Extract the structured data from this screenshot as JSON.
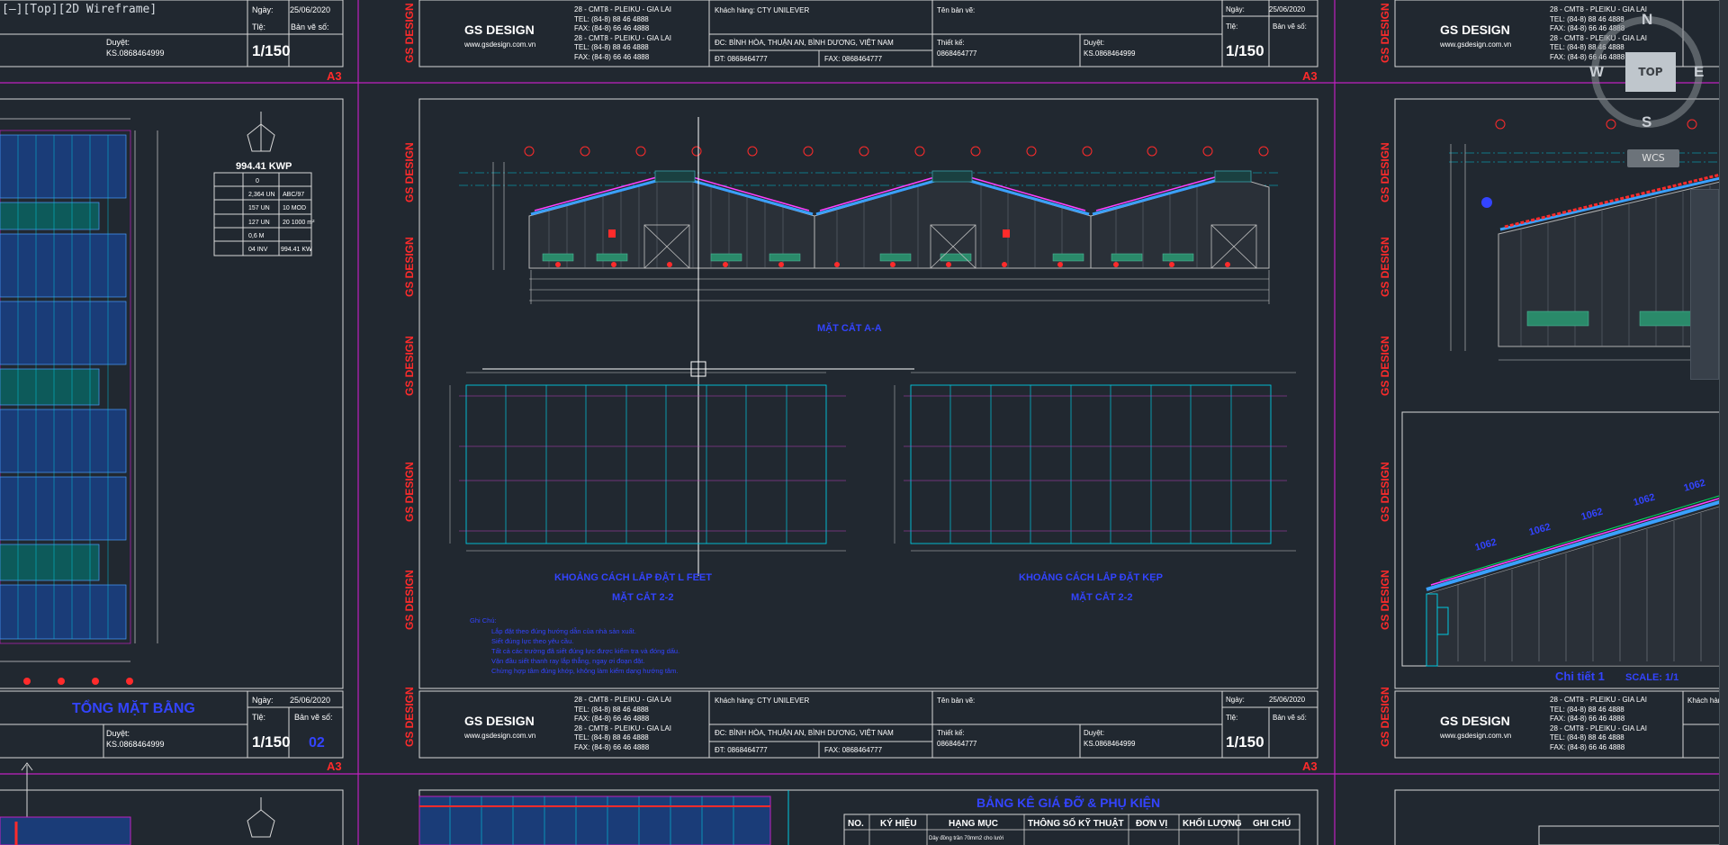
{
  "viewport": {
    "label": "[–][Top][2D Wireframe]"
  },
  "title_block": {
    "company": "GS DESIGN",
    "website": "www.gsdesign.com.vn",
    "address1": "28 - CMT8 - PLEIKU - GIA LAI",
    "tel1": "TEL:   (84-8) 88 46 4888",
    "fax1": "FAX:  (84-8) 66 46 4888",
    "address2": "28 - CMT8 - PLEIKU - GIA LAI",
    "tel2": "TEL:   (84-8) 88 46 4888",
    "fax2": "FAX:  (84-8) 66 46 4888",
    "client": "Khách hàng: CTY UNILEVER",
    "client_address": "ĐC: BÌNH HÒA, THUẬN AN, BÌNH DƯƠNG, VIỆT NAM",
    "phone": "ĐT: 0868464777",
    "fax": "FAX: 0868464777",
    "drawing_name": "Tên bản vẽ:",
    "designer_label": "Thiết kế:",
    "designer_value": "0868464777",
    "approver_label": "Duyệt:",
    "approver_value": "KS.0868464999",
    "date_label": "Ngày:",
    "date_value": "25/06/2020",
    "scale_label": "Tlệ:",
    "scale_value": "1/150",
    "sheet_label": "Bản vẽ số:",
    "sheet_number": "02",
    "paper": "A3"
  },
  "left_sheet": {
    "capacity": "994.41 KWP",
    "plan_title": "TỔNG MẶT BẰNG",
    "legend_values": [
      "0",
      "2,364 UN",
      "157 UN",
      "127 UN",
      "0,6 M",
      "04 INV"
    ],
    "legend_right": [
      "ABC/97",
      "10 MOD",
      "20 1000 m²",
      "994.41 KW"
    ]
  },
  "center_sheet": {
    "section_title": "MẶT CẮT A-A",
    "layout_title_left": "KHOẢNG CÁCH LẮP ĐẶT L FEET",
    "layout_sub_left": "MẶT CẮT 2-2",
    "layout_title_right": "KHOẢNG CÁCH LẮP ĐẶT KẸP",
    "layout_sub_right": "MẶT CẮT 2-2",
    "notes_title": "Ghi Chú:",
    "notes": [
      "Lắp đặt theo đúng hướng dẫn của nhà sản xuất.",
      "Siết đúng lực theo yêu cầu.",
      "Tất cả các trường đã siết đúng lực được kiểm tra và đóng dấu.",
      "Vặn đầu siết thanh ray lắp thẳng, ngay ơi đoạn đặt.",
      "Chừng hợp tâm đúng khớp, không làm kiểm dạng hướng tâm."
    ]
  },
  "right_sheet": {
    "detail_title": "Chi tiết 1",
    "detail_scale": "SCALE: 1/1",
    "dims": [
      "1062",
      "1062",
      "1062",
      "1062",
      "1062"
    ]
  },
  "bottom_sheet": {
    "table_title": "BẢNG KÊ GIÁ ĐỠ & PHỤ KIỆN",
    "columns": [
      "NO.",
      "KÝ HIỆU",
      "HẠNG MỤC",
      "THÔNG SỐ KỸ THUẬT",
      "ĐƠN VỊ",
      "KHỐI LƯỢNG",
      "GHI CHÚ"
    ],
    "row1": "Dây đồng trần 70mm2 cho lưới"
  },
  "margin_text": "GS DESIGN",
  "viewcube": {
    "n": "N",
    "s": "S",
    "e": "E",
    "w": "W",
    "top": "TOP",
    "wcs": "WCS"
  },
  "colors": {
    "background": "#212830",
    "sheet_border": "#c020c0",
    "cyan": "#00c8e0",
    "red": "#ff2b2b",
    "blue_text": "#3344ff"
  }
}
